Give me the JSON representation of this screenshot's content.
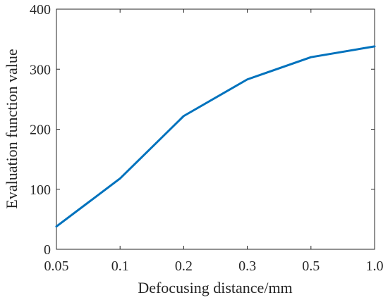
{
  "chart_data": {
    "type": "line",
    "xlabel": "Defocusing distance/mm",
    "ylabel": "Evaluation function value",
    "categories": [
      "0.05",
      "0.1",
      "0.2",
      "0.3",
      "0.5",
      "1.0"
    ],
    "series": [
      {
        "values": [
          38,
          118,
          222,
          283,
          320,
          338
        ],
        "color": "#0072BD"
      }
    ],
    "ylim": [
      0,
      400
    ],
    "yticks": [
      "0",
      "100",
      "200",
      "300",
      "400"
    ],
    "grid": false,
    "box": true
  }
}
